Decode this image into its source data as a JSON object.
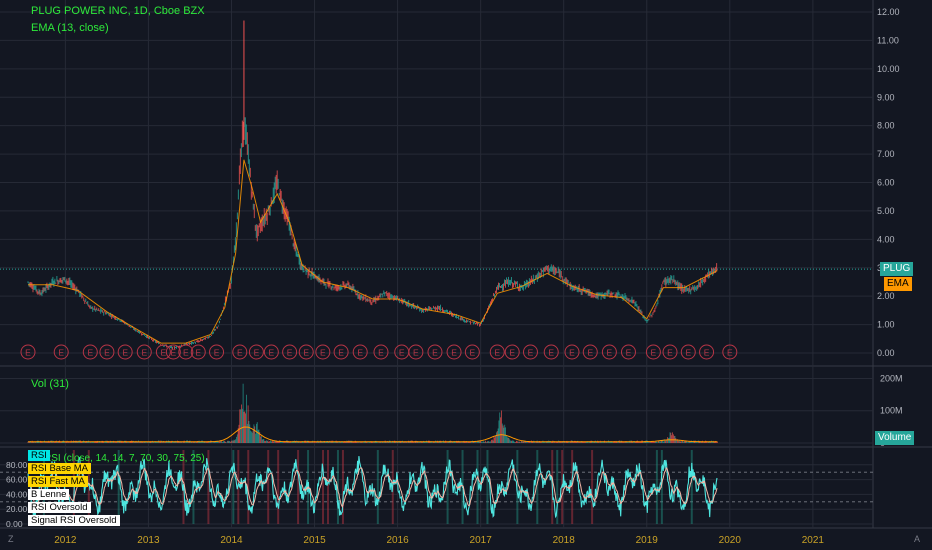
{
  "header": {
    "title": "PLUG POWER INC, 1D, Cboe BZX",
    "ema_label": "EMA (13, close)"
  },
  "volume_pane": {
    "label": "Vol (31)",
    "badge": "Volume"
  },
  "rsi_pane": {
    "label": "RSI (close, 14, 14, 7, 70, 30, 75, 25)",
    "legend": [
      {
        "text": "RSI",
        "bg": "#00e5e5"
      },
      {
        "text": "RSI Base MA",
        "bg": "#ffd500"
      },
      {
        "text": "RSI Fast MA",
        "bg": "#ffd500"
      },
      {
        "text": "B Lenne",
        "bg": "#ffffff"
      },
      {
        "text": "RSI Oversold",
        "bg": "#ffffff"
      },
      {
        "text": "Signal RSI Oversold",
        "bg": "#ffffff"
      }
    ]
  },
  "price_tags": {
    "plug": "PLUG",
    "ema": "EMA"
  },
  "corner": {
    "left": "Z",
    "right": "A"
  },
  "colors": {
    "background": "#131722",
    "grid": "#262a36",
    "legend_text": "#2eea3b",
    "axis_text": "#b2b5be",
    "plug_tag": "#26a69a",
    "ema_tag": "#ff9800",
    "rsi_line": "#4ee6e0",
    "rsi_fast": "#f5b7a6",
    "earnings": "#b73546"
  },
  "chart_data": [
    {
      "type": "line",
      "title": "PLUG POWER INC, 1D, Cboe BZX",
      "x_ticks": [
        "2012",
        "2013",
        "2014",
        "2015",
        "2016",
        "2017",
        "2018",
        "2019",
        "2020",
        "2021"
      ],
      "y_ticks": [
        "0.00",
        "1.00",
        "2.00",
        "3.00",
        "4.00",
        "5.00",
        "6.00",
        "7.00",
        "8.00",
        "9.00",
        "10.00",
        "11.00",
        "12.00"
      ],
      "ylim": [
        0,
        12
      ],
      "last_price_line": 2.95,
      "series": [
        {
          "name": "PLUG",
          "x": [
            2011.55,
            2011.7,
            2011.85,
            2012.0,
            2012.15,
            2012.3,
            2012.5,
            2012.7,
            2012.85,
            2013.0,
            2013.15,
            2013.3,
            2013.45,
            2013.6,
            2013.75,
            2013.85,
            2013.92,
            2014.0,
            2014.05,
            2014.1,
            2014.15,
            2014.2,
            2014.25,
            2014.3,
            2014.35,
            2014.45,
            2014.55,
            2014.62,
            2014.7,
            2014.75,
            2014.85,
            2014.95,
            2015.1,
            2015.25,
            2015.4,
            2015.55,
            2015.7,
            2015.85,
            2016.0,
            2016.15,
            2016.3,
            2016.5,
            2016.7,
            2016.85,
            2017.0,
            2017.1,
            2017.2,
            2017.35,
            2017.5,
            2017.65,
            2017.8,
            2017.95,
            2018.1,
            2018.25,
            2018.4,
            2018.55,
            2018.7,
            2018.85,
            2019.0,
            2019.1,
            2019.2,
            2019.3,
            2019.45,
            2019.6,
            2019.75,
            2019.85
          ],
          "values": [
            2.5,
            2.1,
            2.5,
            2.6,
            2.2,
            1.6,
            1.4,
            1.1,
            0.8,
            0.55,
            0.3,
            0.18,
            0.3,
            0.4,
            0.6,
            1.0,
            1.8,
            2.6,
            4.0,
            6.5,
            8.2,
            7.0,
            5.5,
            4.2,
            4.5,
            5.0,
            6.0,
            5.2,
            4.5,
            3.8,
            3.0,
            2.8,
            2.5,
            2.3,
            2.4,
            2.0,
            1.8,
            2.1,
            1.9,
            1.7,
            1.5,
            1.6,
            1.3,
            1.1,
            1.0,
            1.6,
            2.3,
            2.5,
            2.3,
            2.6,
            3.0,
            2.8,
            2.3,
            2.2,
            2.0,
            2.1,
            2.0,
            1.8,
            1.1,
            1.5,
            2.5,
            2.6,
            2.2,
            2.3,
            2.8,
            2.95
          ]
        },
        {
          "name": "EMA",
          "x": [
            2011.55,
            2011.85,
            2012.15,
            2012.5,
            2012.85,
            2013.15,
            2013.45,
            2013.75,
            2013.92,
            2014.05,
            2014.15,
            2014.25,
            2014.35,
            2014.55,
            2014.7,
            2014.85,
            2015.1,
            2015.4,
            2015.7,
            2016.0,
            2016.3,
            2016.7,
            2017.0,
            2017.2,
            2017.5,
            2017.8,
            2018.1,
            2018.4,
            2018.7,
            2019.0,
            2019.2,
            2019.45,
            2019.75,
            2019.85
          ],
          "values": [
            2.4,
            2.4,
            2.2,
            1.45,
            0.85,
            0.35,
            0.35,
            0.65,
            1.6,
            3.5,
            6.8,
            5.8,
            4.6,
            5.6,
            4.6,
            3.1,
            2.5,
            2.3,
            1.9,
            1.9,
            1.55,
            1.35,
            1.05,
            2.1,
            2.35,
            2.8,
            2.35,
            2.05,
            1.95,
            1.2,
            2.3,
            2.3,
            2.75,
            2.9
          ]
        }
      ],
      "earnings_markers": [
        2011.55,
        2011.95,
        2012.3,
        2012.5,
        2012.72,
        2012.95,
        2013.18,
        2013.3,
        2013.45,
        2013.6,
        2013.82,
        2014.1,
        2014.3,
        2014.48,
        2014.7,
        2014.9,
        2015.1,
        2015.32,
        2015.55,
        2015.8,
        2016.05,
        2016.22,
        2016.45,
        2016.68,
        2016.9,
        2017.2,
        2017.38,
        2017.6,
        2017.85,
        2018.1,
        2018.32,
        2018.55,
        2018.78,
        2019.08,
        2019.28,
        2019.5,
        2019.72,
        2020.0
      ]
    },
    {
      "type": "bar",
      "title": "Vol (31)",
      "y_ticks": [
        "0",
        "100M",
        "200M"
      ],
      "ylim": [
        0,
        220
      ],
      "peaks": [
        {
          "x": 2014.15,
          "value": 200
        },
        {
          "x": 2014.3,
          "value": 60
        },
        {
          "x": 2017.25,
          "value": 110
        },
        {
          "x": 2019.3,
          "value": 30
        }
      ],
      "ma_peak": 40
    },
    {
      "type": "line",
      "title": "RSI (close, 14, 14, 7, 70, 30, 75, 25)",
      "y_ticks": [
        "0.00",
        "20.00",
        "40.00",
        "60.00",
        "80.00"
      ],
      "ylim": [
        0,
        100
      ],
      "bands": [
        30,
        70
      ],
      "series": [
        {
          "name": "RSI"
        },
        {
          "name": "RSI Fast MA"
        }
      ]
    }
  ]
}
